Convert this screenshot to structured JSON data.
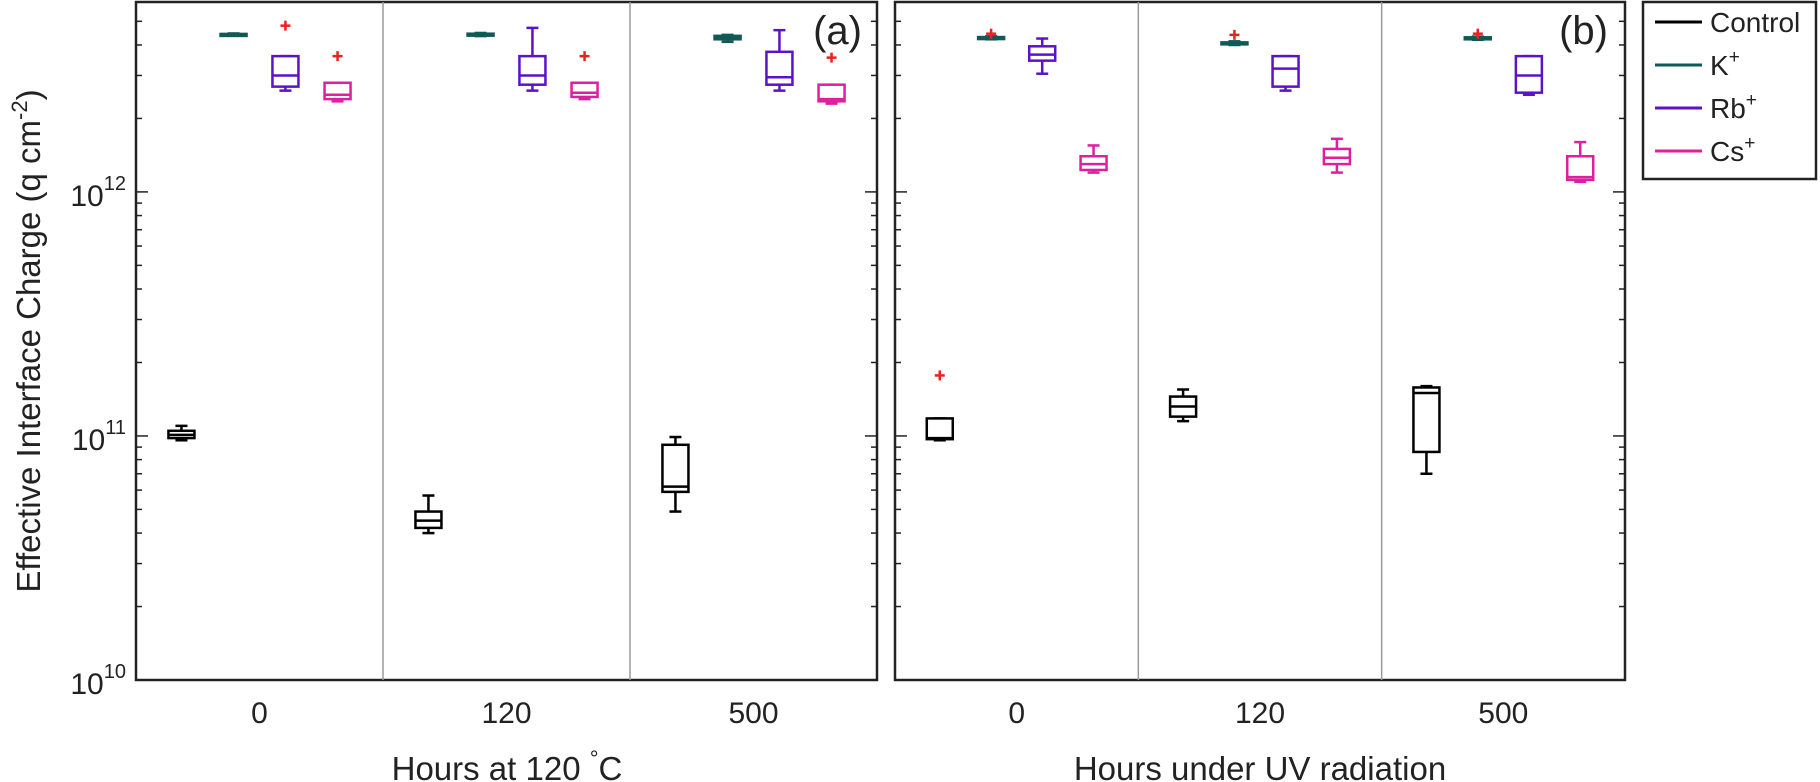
{
  "chart_data": [
    {
      "type": "box",
      "panel_label": "(a)",
      "xlabel": "Hours at 120 °C",
      "ylabel": "Effective Interface Charge (q cm⁻²)",
      "yscale": "log",
      "ylim": [
        10000000000.0,
        6000000000000.0
      ],
      "yticks": [
        10000000000.0,
        100000000000.0,
        1000000000000.0
      ],
      "ytick_labels": [
        {
          "base": "10",
          "exp": "10"
        },
        {
          "base": "10",
          "exp": "11"
        },
        {
          "base": "10",
          "exp": "12"
        }
      ],
      "categories": [
        "0",
        "120",
        "500"
      ],
      "group_separators": true,
      "series": [
        {
          "name": "Control",
          "color": "#000000",
          "boxes": [
            {
              "min": 96000000000.0,
              "q1": 98000000000.0,
              "median": 101000000000.0,
              "q3": 105000000000.0,
              "max": 110000000000.0,
              "outliers": []
            },
            {
              "min": 40000000000.0,
              "q1": 42000000000.0,
              "median": 45000000000.0,
              "q3": 49000000000.0,
              "max": 57000000000.0,
              "outliers": []
            },
            {
              "min": 49000000000.0,
              "q1": 59000000000.0,
              "median": 62000000000.0,
              "q3": 92000000000.0,
              "max": 99000000000.0,
              "outliers": []
            }
          ]
        },
        {
          "name": "K+",
          "color": "#0f5a55",
          "boxes": [
            {
              "min": 4380000000000.0,
              "q1": 4400000000000.0,
              "median": 4420000000000.0,
              "q3": 4440000000000.0,
              "max": 4460000000000.0,
              "outliers": []
            },
            {
              "min": 4350000000000.0,
              "q1": 4380000000000.0,
              "median": 4420000000000.0,
              "q3": 4450000000000.0,
              "max": 4480000000000.0,
              "outliers": []
            },
            {
              "min": 4120000000000.0,
              "q1": 4220000000000.0,
              "median": 4300000000000.0,
              "q3": 4360000000000.0,
              "max": 4400000000000.0,
              "outliers": []
            }
          ]
        },
        {
          "name": "Rb+",
          "color": "#5b12c8",
          "boxes": [
            {
              "min": 2600000000000.0,
              "q1": 2700000000000.0,
              "median": 3000000000000.0,
              "q3": 3600000000000.0,
              "max": 3600000000000.0,
              "outliers": []
            },
            {
              "min": 2600000000000.0,
              "q1": 2750000000000.0,
              "median": 3000000000000.0,
              "q3": 3600000000000.0,
              "max": 4700000000000.0,
              "outliers": []
            },
            {
              "min": 2600000000000.0,
              "q1": 2750000000000.0,
              "median": 2950000000000.0,
              "q3": 3750000000000.0,
              "max": 4600000000000.0,
              "outliers": []
            }
          ]
        },
        {
          "name": "Cs+",
          "color": "#de1fa0",
          "boxes": [
            {
              "min": 2350000000000.0,
              "q1": 2400000000000.0,
              "median": 2500000000000.0,
              "q3": 2800000000000.0,
              "max": 2800000000000.0,
              "outliers": [
                3600000000000.0
              ]
            },
            {
              "min": 2400000000000.0,
              "q1": 2450000000000.0,
              "median": 2550000000000.0,
              "q3": 2800000000000.0,
              "max": 2800000000000.0,
              "outliers": [
                3600000000000.0
              ]
            },
            {
              "min": 2300000000000.0,
              "q1": 2350000000000.0,
              "median": 2400000000000.0,
              "q3": 2750000000000.0,
              "max": 2750000000000.0,
              "outliers": [
                3550000000000.0
              ]
            }
          ]
        }
      ],
      "extra_outliers": [
        {
          "series": "Rb+",
          "category": "0",
          "value": 4800000000000.0
        }
      ]
    },
    {
      "type": "box",
      "panel_label": "(b)",
      "xlabel": "Hours under UV radiation",
      "ylabel": "",
      "yscale": "log",
      "ylim": [
        10000000000.0,
        6000000000000.0
      ],
      "yticks": [
        10000000000.0,
        100000000000.0,
        1000000000000.0
      ],
      "ytick_labels": [],
      "categories": [
        "0",
        "120",
        "500"
      ],
      "group_separators": true,
      "series": [
        {
          "name": "Control",
          "color": "#000000",
          "boxes": [
            {
              "min": 96000000000.0,
              "q1": 97000000000.0,
              "median": 98000000000.0,
              "q3": 118000000000.0,
              "max": 118000000000.0,
              "outliers": [
                177000000000.0
              ]
            },
            {
              "min": 115000000000.0,
              "q1": 120000000000.0,
              "median": 132000000000.0,
              "q3": 145000000000.0,
              "max": 155000000000.0,
              "outliers": []
            },
            {
              "min": 70000000000.0,
              "q1": 86000000000.0,
              "median": 150000000000.0,
              "q3": 158000000000.0,
              "max": 160000000000.0,
              "outliers": []
            }
          ]
        },
        {
          "name": "K+",
          "color": "#0f5a55",
          "boxes": [
            {
              "min": 4220000000000.0,
              "q1": 4250000000000.0,
              "median": 4280000000000.0,
              "q3": 4310000000000.0,
              "max": 4340000000000.0,
              "outliers": [
                4450000000000.0
              ]
            },
            {
              "min": 4000000000000.0,
              "q1": 4030000000000.0,
              "median": 4060000000000.0,
              "q3": 4100000000000.0,
              "max": 4140000000000.0,
              "outliers": [
                4400000000000.0
              ]
            },
            {
              "min": 4200000000000.0,
              "q1": 4230000000000.0,
              "median": 4260000000000.0,
              "q3": 4300000000000.0,
              "max": 4330000000000.0,
              "outliers": [
                4450000000000.0
              ]
            }
          ]
        },
        {
          "name": "Rb+",
          "color": "#5b12c8",
          "boxes": [
            {
              "min": 3050000000000.0,
              "q1": 3450000000000.0,
              "median": 3650000000000.0,
              "q3": 3950000000000.0,
              "max": 4250000000000.0,
              "outliers": []
            },
            {
              "min": 2600000000000.0,
              "q1": 2700000000000.0,
              "median": 3200000000000.0,
              "q3": 3600000000000.0,
              "max": 3600000000000.0,
              "outliers": []
            },
            {
              "min": 2500000000000.0,
              "q1": 2550000000000.0,
              "median": 3000000000000.0,
              "q3": 3600000000000.0,
              "max": 3600000000000.0,
              "outliers": []
            }
          ]
        },
        {
          "name": "Cs+",
          "color": "#de1fa0",
          "boxes": [
            {
              "min": 1200000000000.0,
              "q1": 1230000000000.0,
              "median": 1300000000000.0,
              "q3": 1400000000000.0,
              "max": 1550000000000.0,
              "outliers": []
            },
            {
              "min": 1200000000000.0,
              "q1": 1300000000000.0,
              "median": 1380000000000.0,
              "q3": 1500000000000.0,
              "max": 1650000000000.0,
              "outliers": []
            },
            {
              "min": 1100000000000.0,
              "q1": 1120000000000.0,
              "median": 1150000000000.0,
              "q3": 1400000000000.0,
              "max": 1600000000000.0,
              "outliers": []
            }
          ]
        }
      ],
      "extra_outliers": []
    }
  ],
  "legend": {
    "placement": "top-right, outside panels",
    "items": [
      {
        "base": "Control",
        "sup": "",
        "color": "#000000"
      },
      {
        "base": "K",
        "sup": "+",
        "color": "#0f5a55"
      },
      {
        "base": "Rb",
        "sup": "+",
        "color": "#5b12c8"
      },
      {
        "base": "Cs",
        "sup": "+",
        "color": "#de1fa0"
      }
    ]
  },
  "axis_text": {
    "ylabel_main": "Effective Interface Charge (q cm",
    "ylabel_sup": "-2",
    "ylabel_close": ")",
    "xlabel_a_main": "Hours at 120 ",
    "xlabel_a_sup": "°",
    "xlabel_a_unit": "C"
  },
  "outlier_color": "#e8221f"
}
